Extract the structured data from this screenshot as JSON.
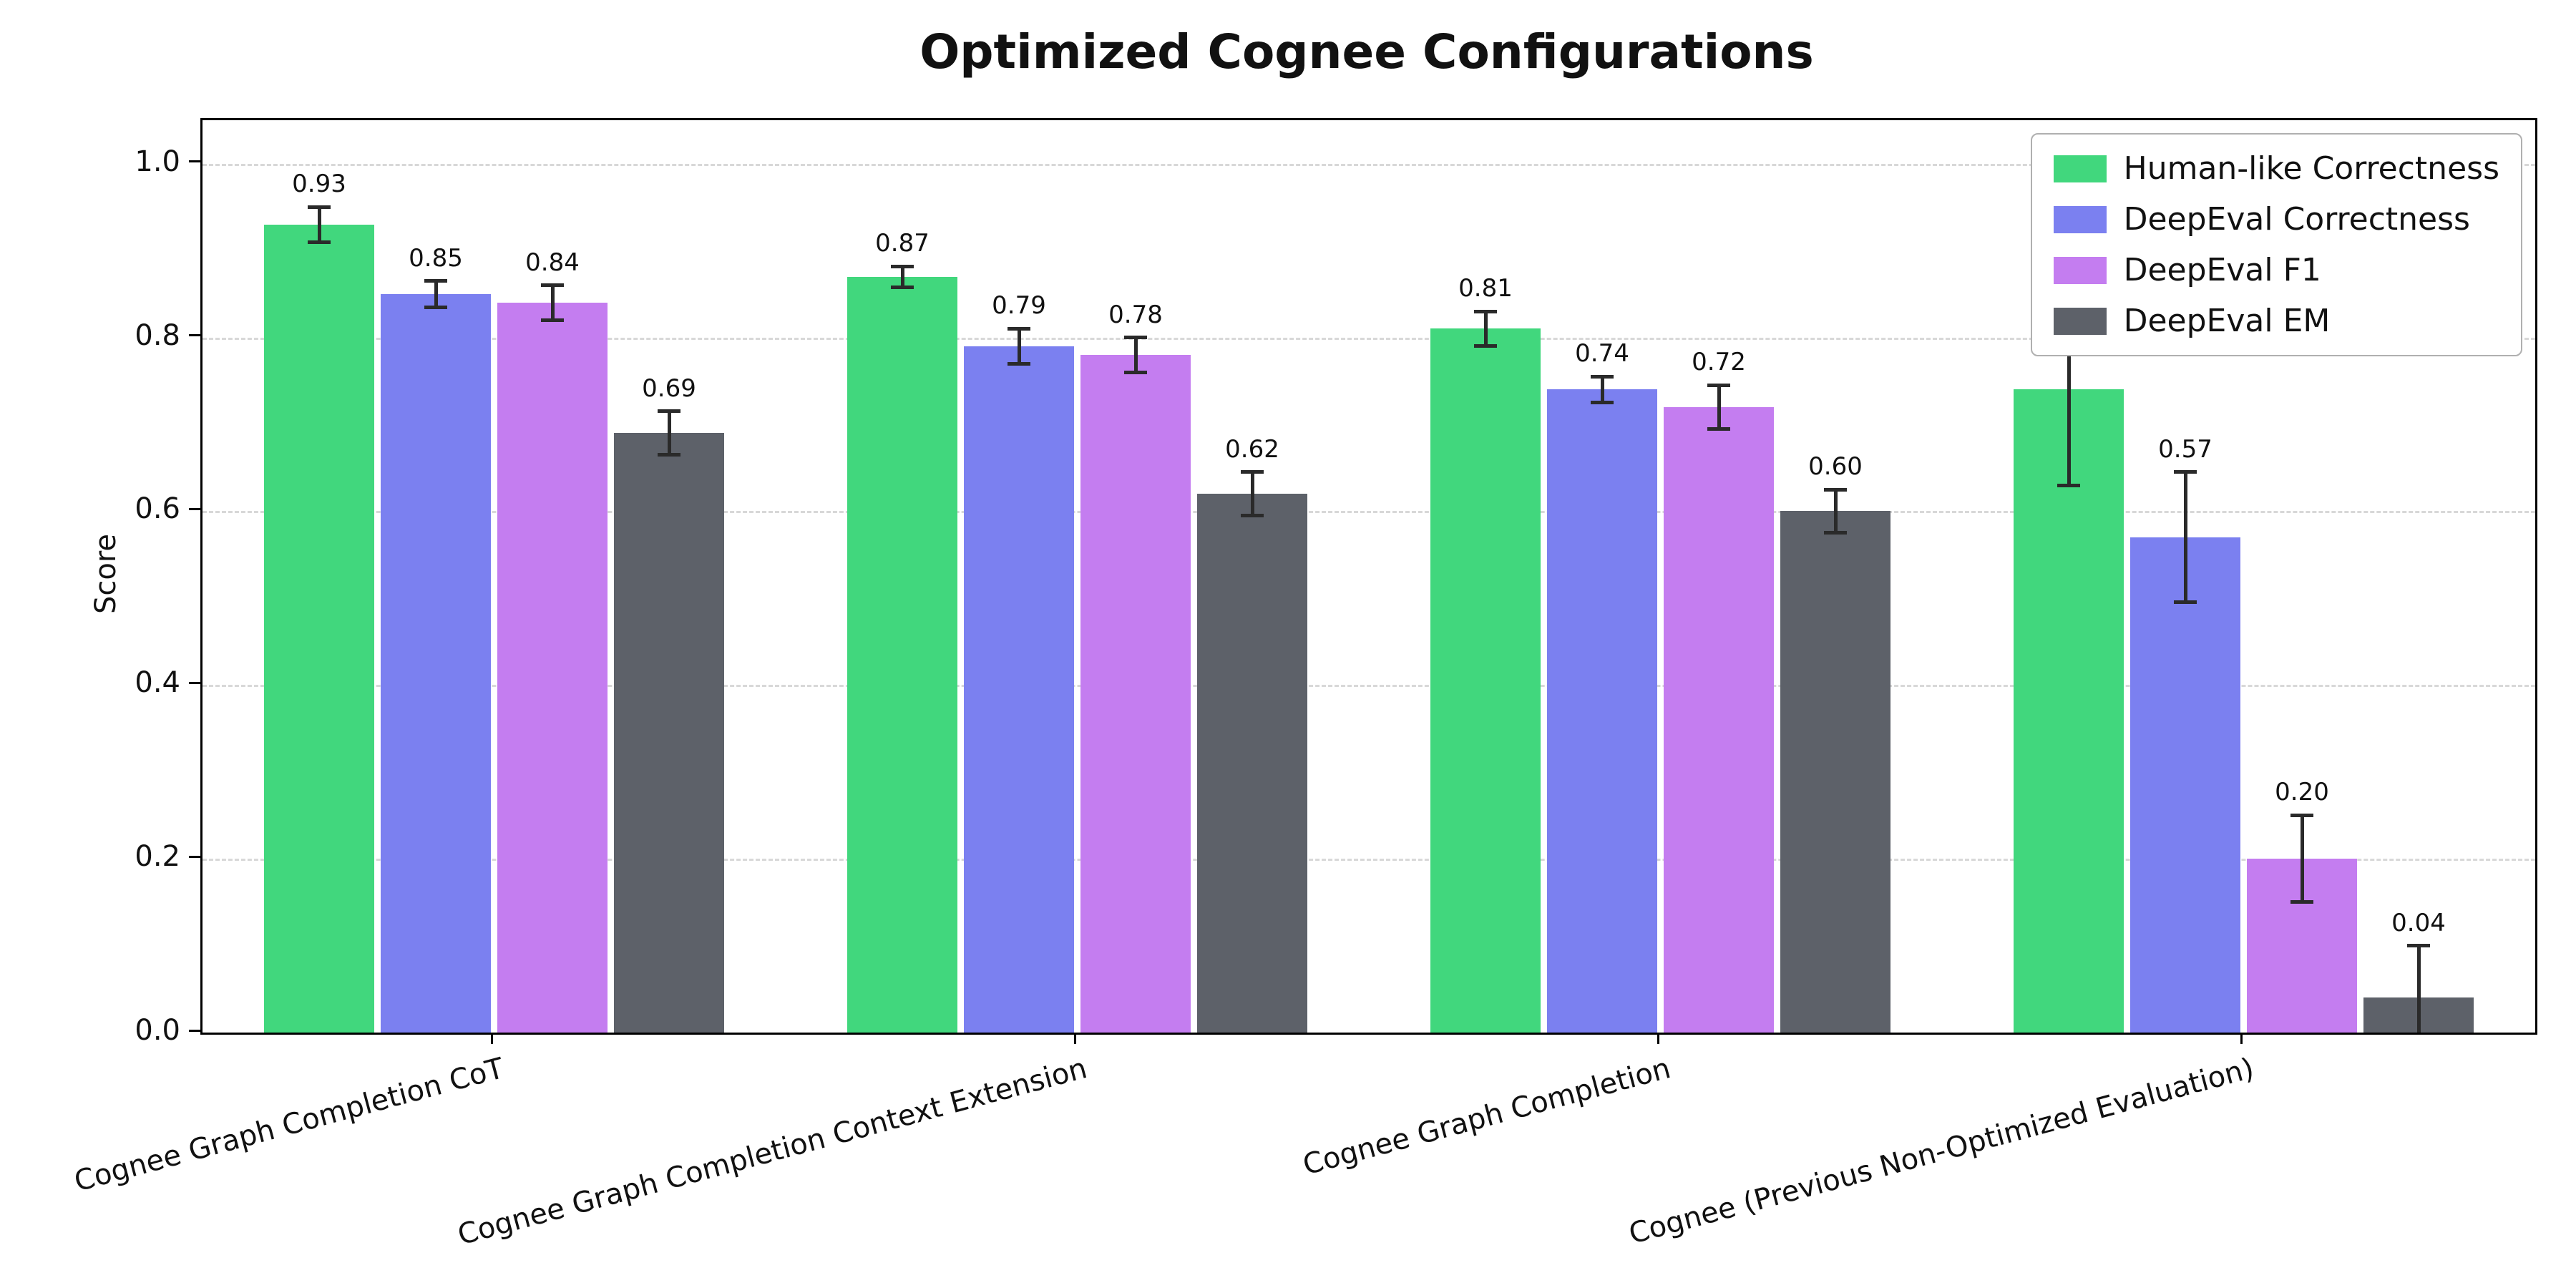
{
  "chart_data": {
    "type": "bar",
    "title": "Optimized Cognee Configurations",
    "ylabel": "Score",
    "xlabel": "",
    "ylim": [
      0,
      1.05
    ],
    "yticks": [
      0.0,
      0.2,
      0.4,
      0.6,
      0.8,
      1.0
    ],
    "grid": "horizontal-dashed",
    "legend_position": "upper-right",
    "error_bars": true,
    "bar_label_format": "0.00",
    "categories": [
      "Cognee Graph Completion CoT",
      "Cognee Graph Completion Context Extension",
      "Cognee Graph Completion",
      "Cognee (Previous Non-Optimized Evaluation)"
    ],
    "series": [
      {
        "name": "Human-like Correctness",
        "color": "#41d77d",
        "values": [
          0.93,
          0.87,
          0.81,
          0.74
        ],
        "errors": [
          0.02,
          0.012,
          0.02,
          0.11
        ]
      },
      {
        "name": "DeepEval Correctness",
        "color": "#7b80f0",
        "values": [
          0.85,
          0.79,
          0.74,
          0.57
        ],
        "errors": [
          0.015,
          0.02,
          0.015,
          0.075
        ]
      },
      {
        "name": "DeepEval F1",
        "color": "#c47df0",
        "values": [
          0.84,
          0.78,
          0.72,
          0.2
        ],
        "errors": [
          0.02,
          0.02,
          0.025,
          0.05
        ]
      },
      {
        "name": "DeepEval EM",
        "color": "#5d6169",
        "values": [
          0.69,
          0.62,
          0.6,
          0.04
        ],
        "errors": [
          0.025,
          0.025,
          0.025,
          0.06
        ]
      }
    ]
  }
}
